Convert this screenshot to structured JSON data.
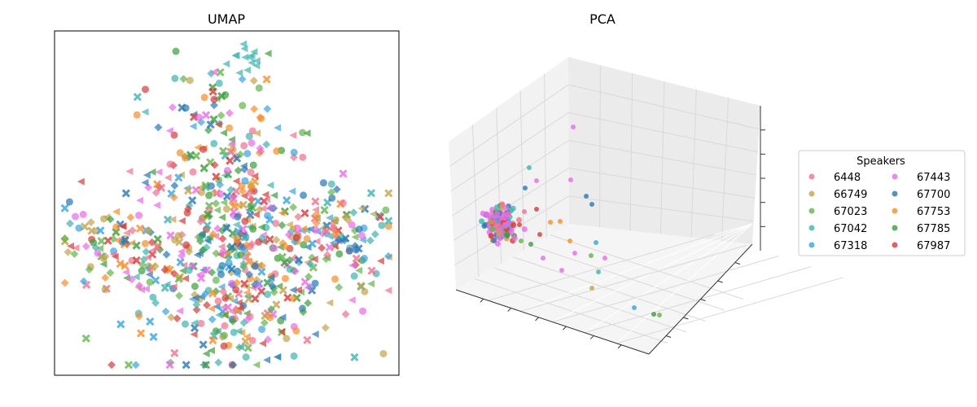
{
  "chart_data": [
    {
      "type": "scatter",
      "title": "UMAP",
      "xlabel": "",
      "ylabel": "",
      "ticks": "hidden",
      "shapes_note": "circle, cross, triangle, diamond markers mixed per speaker",
      "clusters": [
        {
          "name": "67042 (isolated)",
          "center": [
            0.56,
            0.92
          ],
          "spread": [
            0.03,
            0.03
          ],
          "n": 14
        },
        {
          "name": "upper column",
          "center": [
            0.47,
            0.68
          ],
          "spread": [
            0.1,
            0.12
          ],
          "n": 120
        },
        {
          "name": "main body",
          "center": [
            0.55,
            0.37
          ],
          "spread": [
            0.18,
            0.12
          ],
          "n": 380
        },
        {
          "name": "left arm",
          "center": [
            0.16,
            0.37
          ],
          "spread": [
            0.08,
            0.06
          ],
          "n": 70
        },
        {
          "name": "right arm",
          "center": [
            0.86,
            0.4
          ],
          "spread": [
            0.08,
            0.06
          ],
          "n": 70
        },
        {
          "name": "lower lobe",
          "center": [
            0.5,
            0.16
          ],
          "spread": [
            0.13,
            0.07
          ],
          "n": 110
        }
      ]
    },
    {
      "type": "scatter3d",
      "title": "PCA",
      "legend": {
        "title": "Speakers",
        "placement": "right",
        "entries": [
          {
            "label": "6448",
            "color": "#f0718d"
          },
          {
            "label": "66749",
            "color": "#c4a34c"
          },
          {
            "label": "67023",
            "color": "#63b54c"
          },
          {
            "label": "67042",
            "color": "#3fb3ae"
          },
          {
            "label": "67318",
            "color": "#3ba4e0"
          },
          {
            "label": "67443",
            "color": "#e86ae8"
          },
          {
            "label": "67700",
            "color": "#2a78b5"
          },
          {
            "label": "67753",
            "color": "#f58f2a"
          },
          {
            "label": "67785",
            "color": "#3a9e3a"
          },
          {
            "label": "67987",
            "color": "#d43c3c"
          }
        ]
      },
      "points_note": "dense cluster near origin plus scattered outliers along first component"
    }
  ]
}
